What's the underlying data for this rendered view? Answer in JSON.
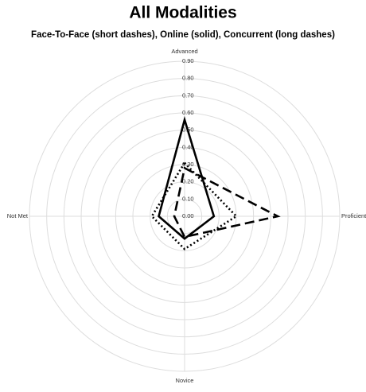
{
  "chart_data": {
    "type": "radar",
    "title": "All Modalities",
    "subtitle": "Face-To-Face (short dashes), Online (solid), Concurrent (long dashes)",
    "categories": [
      "Advanced",
      "Proficient",
      "Novice",
      "Not Met"
    ],
    "series": [
      {
        "color": "#000000",
        "line_style": "dotted",
        "values": [
          0.31,
          0.3,
          0.19,
          0.19
        ]
      },
      {
        "color": "#000000",
        "line_style": "solid",
        "values": [
          0.56,
          0.17,
          0.13,
          0.15
        ]
      },
      {
        "color": "#000000",
        "line_style": "dashed",
        "values": [
          0.28,
          0.54,
          0.12,
          0.06
        ]
      }
    ],
    "ylim": [
      0,
      0.9
    ],
    "yticks": [
      {
        "value": 0,
        "label": "0.00"
      },
      {
        "value": 0.1,
        "label": "0.10"
      },
      {
        "value": 0.2,
        "label": "0.20"
      },
      {
        "value": 0.3,
        "label": "0.30"
      },
      {
        "value": 0.4,
        "label": "0.40"
      },
      {
        "value": 0.5,
        "label": "0.50"
      },
      {
        "value": 0.6,
        "label": "0.60"
      },
      {
        "value": 0.7,
        "label": "0.70"
      },
      {
        "value": 0.8,
        "label": "0.80"
      },
      {
        "value": 0.9,
        "label": "0.90"
      }
    ],
    "grid": true
  }
}
